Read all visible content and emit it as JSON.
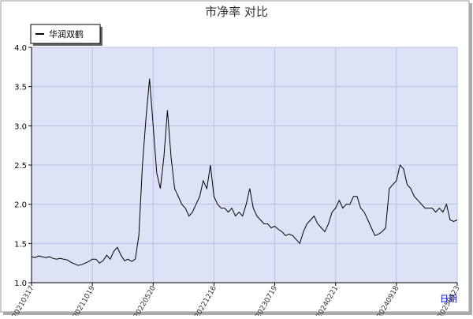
{
  "chart_data": {
    "type": "line",
    "title": "市净率 对比",
    "x_label": "日期",
    "categories": [
      "20210317",
      null,
      null,
      null,
      null,
      null,
      null,
      null,
      null,
      null,
      null,
      null,
      null,
      null,
      null,
      null,
      null,
      "20211019",
      null,
      null,
      null,
      null,
      null,
      null,
      null,
      null,
      null,
      null,
      null,
      null,
      null,
      null,
      null,
      null,
      "20220520",
      null,
      null,
      null,
      null,
      null,
      null,
      null,
      null,
      null,
      null,
      null,
      null,
      null,
      null,
      null,
      null,
      "20221216",
      null,
      null,
      null,
      null,
      null,
      null,
      null,
      null,
      null,
      null,
      null,
      null,
      null,
      null,
      null,
      null,
      "20230719",
      null,
      null,
      null,
      null,
      null,
      null,
      null,
      null,
      null,
      null,
      null,
      null,
      null,
      null,
      null,
      null,
      "20240221",
      null,
      null,
      null,
      null,
      null,
      null,
      null,
      null,
      null,
      null,
      null,
      null,
      null,
      null,
      null,
      null,
      "20240918",
      null,
      null,
      null,
      null,
      null,
      null,
      null,
      null,
      null,
      null,
      null,
      null,
      null,
      null,
      null,
      null,
      "20250423"
    ],
    "series": [
      {
        "name": "华润双鹤",
        "color": "#000000",
        "values": [
          1.33,
          1.32,
          1.34,
          1.33,
          1.32,
          1.33,
          1.31,
          1.3,
          1.31,
          1.3,
          1.29,
          1.26,
          1.24,
          1.22,
          1.23,
          1.25,
          1.27,
          1.3,
          1.3,
          1.25,
          1.28,
          1.35,
          1.3,
          1.4,
          1.45,
          1.35,
          1.28,
          1.3,
          1.27,
          1.3,
          1.6,
          2.5,
          3.1,
          3.6,
          3.0,
          2.4,
          2.2,
          2.6,
          3.2,
          2.6,
          2.2,
          2.1,
          2.0,
          1.95,
          1.85,
          1.9,
          2.0,
          2.1,
          2.3,
          2.2,
          2.5,
          2.1,
          2.0,
          1.95,
          1.95,
          1.9,
          1.95,
          1.85,
          1.9,
          1.85,
          2.0,
          2.2,
          1.95,
          1.85,
          1.8,
          1.75,
          1.75,
          1.7,
          1.72,
          1.68,
          1.65,
          1.6,
          1.62,
          1.6,
          1.55,
          1.5,
          1.65,
          1.75,
          1.8,
          1.85,
          1.75,
          1.7,
          1.65,
          1.75,
          1.9,
          1.95,
          2.05,
          1.95,
          2.0,
          2.0,
          2.1,
          2.1,
          1.95,
          1.9,
          1.8,
          1.7,
          1.6,
          1.62,
          1.65,
          1.7,
          2.2,
          2.25,
          2.3,
          2.5,
          2.45,
          2.25,
          2.2,
          2.1,
          2.05,
          2.0,
          1.95,
          1.95,
          1.95,
          1.9,
          1.95,
          1.9,
          2.0,
          1.8,
          1.78,
          1.8
        ]
      }
    ],
    "ylim": [
      1,
      4
    ],
    "yticks": [
      {
        "value": 1,
        "label": "1.0"
      },
      1.5,
      {
        "value": 2,
        "label": "2.0"
      },
      2.5,
      {
        "value": 3,
        "label": "3.0"
      },
      3.5,
      {
        "value": 4,
        "label": "4.0"
      }
    ],
    "grid": true,
    "legend": "top-left"
  }
}
